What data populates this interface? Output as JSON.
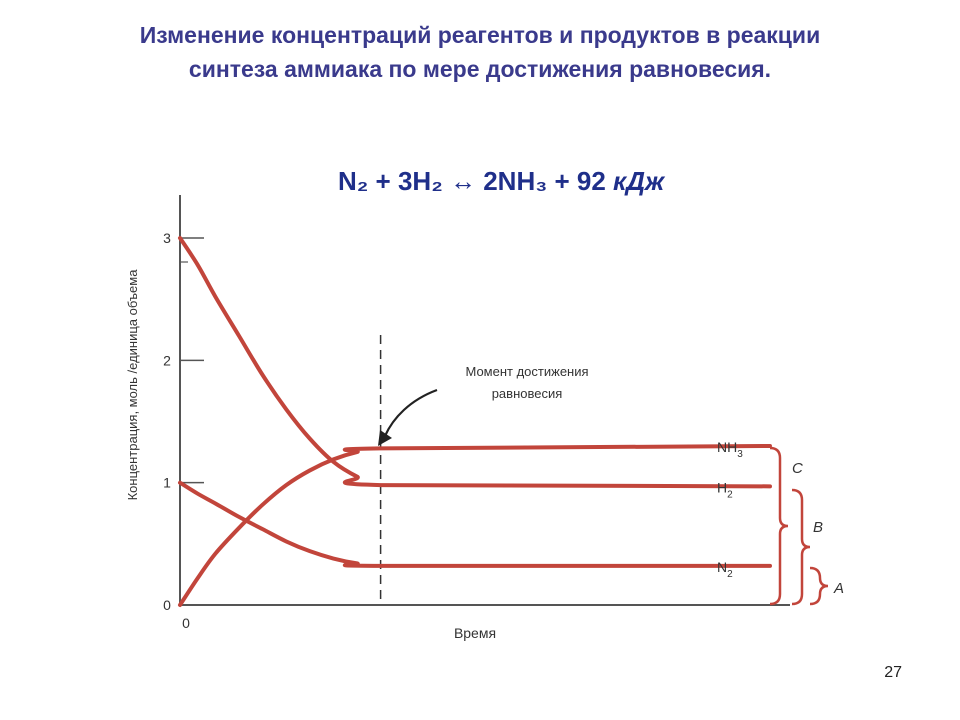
{
  "title": {
    "line1": "Изменение концентраций реагентов и продуктов в реакции",
    "line2": "синтеза аммиака по мере достижения равновесия."
  },
  "equation": {
    "lhs": "N₂ + 3H₂ ",
    "arrow": "↔",
    "rhs": " 2NH₃ + 92 ",
    "unit": "кДж"
  },
  "page_number": "27",
  "colors": {
    "title": "#3a3a8c",
    "equation": "#1f2f8a",
    "curve": "#c2453b",
    "axis": "#555555"
  },
  "chart_data": {
    "type": "line",
    "ylabel": "Концентрация, моль /единица объема",
    "xlabel": "Время",
    "x_origin_label": "0",
    "y_ticks": [
      "0",
      "1",
      "2",
      "3"
    ],
    "ylim": [
      0,
      3.5
    ],
    "xlim": [
      0,
      1
    ],
    "grid": false,
    "equilibrium_x": 0.34,
    "annotation": {
      "line1": "Момент достижения",
      "line2": "равновесия"
    },
    "series": [
      {
        "name": "NH",
        "subscript": "3",
        "x": [
          0,
          0.03,
          0.06,
          0.1,
          0.14,
          0.18,
          0.22,
          0.26,
          0.3,
          0.34,
          1.0
        ],
        "y": [
          0,
          0.22,
          0.42,
          0.63,
          0.82,
          0.98,
          1.1,
          1.19,
          1.25,
          1.28,
          1.3
        ]
      },
      {
        "name": "H",
        "subscript": "2",
        "x": [
          0,
          0.03,
          0.06,
          0.1,
          0.14,
          0.18,
          0.22,
          0.26,
          0.3,
          0.34,
          1.0
        ],
        "y": [
          3.0,
          2.78,
          2.52,
          2.2,
          1.88,
          1.6,
          1.36,
          1.17,
          1.05,
          0.98,
          0.97
        ]
      },
      {
        "name": "N",
        "subscript": "2",
        "x": [
          0,
          0.03,
          0.06,
          0.1,
          0.14,
          0.18,
          0.22,
          0.26,
          0.3,
          0.34,
          1.0
        ],
        "y": [
          1.0,
          0.91,
          0.83,
          0.72,
          0.62,
          0.52,
          0.44,
          0.38,
          0.34,
          0.32,
          0.32
        ]
      }
    ],
    "brace_labels": [
      "C",
      "B",
      "A"
    ]
  }
}
